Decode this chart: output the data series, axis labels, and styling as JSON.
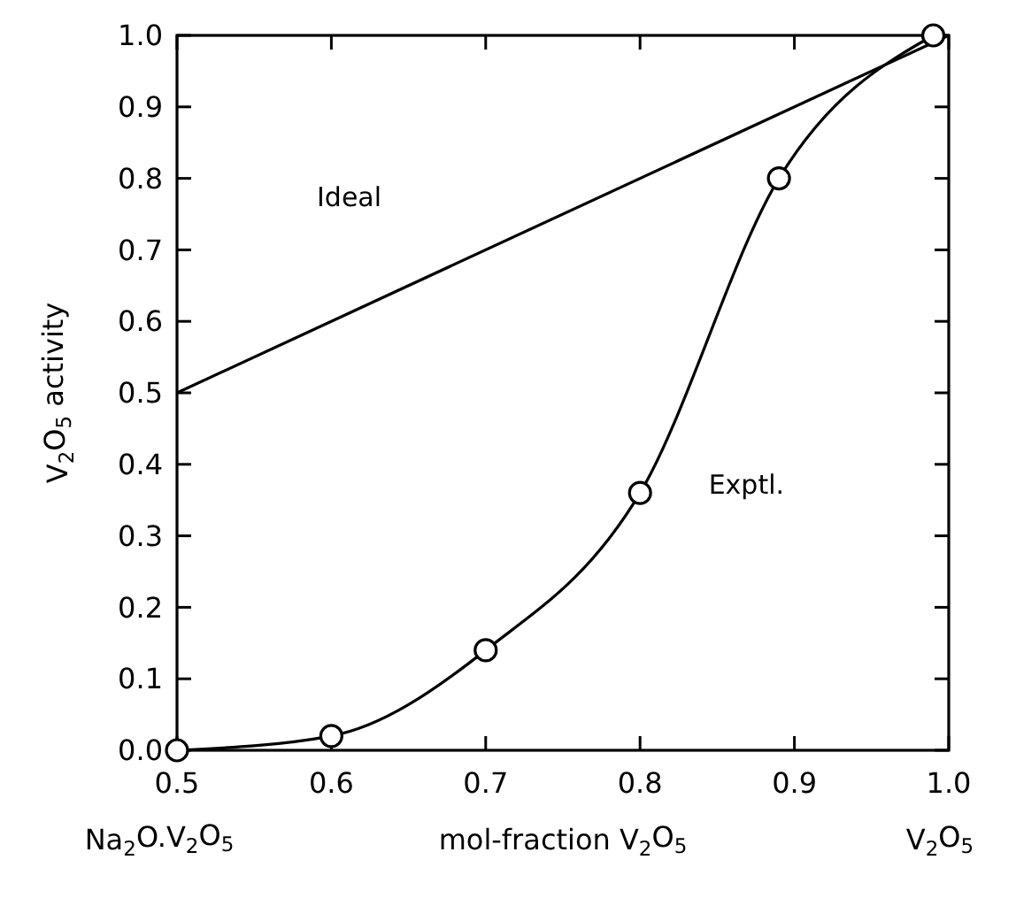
{
  "chart_data": {
    "type": "line",
    "xlabel": "mol-fraction V$_{2}$O$_{5}$",
    "ylabel": "V$_{2}$O$_{5}$ activity",
    "annotations": [
      "Na$_{2}$O.V$_{2}$O$_{5}$",
      "V$_{2}$O$_{5}$"
    ],
    "series": [
      {
        "name": "Ideal",
        "color": "#000000",
        "marker": "none",
        "x": [
          0.5,
          1.0
        ],
        "values": [
          0.5,
          1.0
        ]
      },
      {
        "name": "Exptl.",
        "color": "#000000",
        "marker": "circle",
        "x": [
          0.5,
          0.6,
          0.7,
          0.8,
          0.89,
          0.99
        ],
        "values": [
          0,
          0.02,
          0.14,
          0.36,
          0.8,
          1.0
        ]
      }
    ],
    "xlim": [
      0.5,
      1.0
    ],
    "xticks": [
      0.5,
      0.6,
      0.7,
      0.8,
      0.9,
      {
        "value": 1.0,
        "label": "1.0"
      }
    ],
    "ylim": [
      0,
      1.0
    ],
    "yticks": [
      {
        "value": 0,
        "label": "0.0"
      },
      0.1,
      0.2,
      0.3,
      0.4,
      0.5,
      0.6,
      0.7,
      0.8,
      0.9,
      {
        "value": 1.0,
        "label": "1.0"
      }
    ],
    "grid": false
  }
}
